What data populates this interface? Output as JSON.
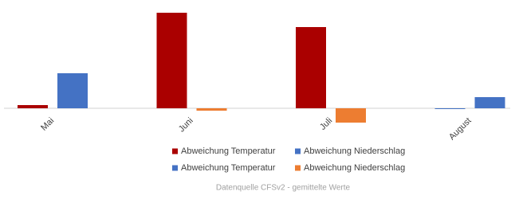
{
  "chart_data": {
    "type": "bar",
    "footnote": "Datenquelle CFSv2 - gemittelte Werte",
    "categories": [
      "Mai",
      "Juni",
      "Juli",
      "August"
    ],
    "series": [
      {
        "name": "Abweichung Temperatur",
        "color": "#aa0000",
        "values": [
          4,
          120,
          102,
          null
        ]
      },
      {
        "name": "Abweichung Niederschlag",
        "color": "#4472c4",
        "values": [
          44,
          null,
          null,
          14
        ]
      },
      {
        "name": "Abweichung Temperatur",
        "color": "#4472c4",
        "values": [
          null,
          null,
          null,
          -1
        ]
      },
      {
        "name": "Abweichung Niederschlag",
        "color": "#ed7d31",
        "values": [
          null,
          -3,
          -18,
          null
        ]
      }
    ],
    "grid": false
  }
}
